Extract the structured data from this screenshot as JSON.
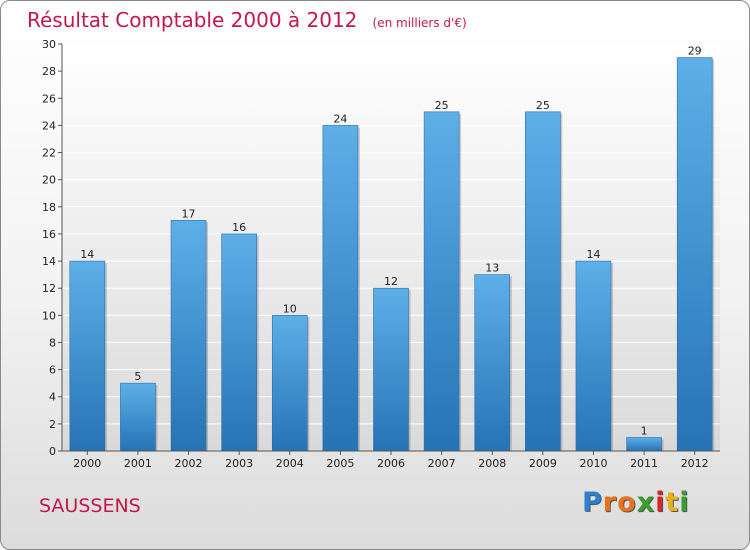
{
  "header": {
    "title": "Résultat Comptable 2000 à 2012",
    "unit": "(en milliers d'€)"
  },
  "footer": {
    "commune": "SAUSSENS",
    "brand_letters": [
      "P",
      "r",
      "o",
      "x",
      "i",
      "t",
      "i"
    ],
    "brand_colors": [
      "#2e7fd0",
      "#e8731c",
      "#e8731c",
      "#3a9e2e",
      "#d6272a",
      "#e8b21c",
      "#3a9e2e"
    ]
  },
  "chart_data": {
    "type": "bar",
    "title": "Résultat Comptable 2000 à 2012",
    "xlabel": "",
    "ylabel": "",
    "categories": [
      "2000",
      "2001",
      "2002",
      "2003",
      "2004",
      "2005",
      "2006",
      "2007",
      "2008",
      "2009",
      "2010",
      "2011",
      "2012"
    ],
    "values": [
      14,
      5,
      17,
      16,
      10,
      24,
      12,
      25,
      13,
      25,
      14,
      1,
      29
    ],
    "ylim": [
      0,
      30
    ],
    "yticks": [
      0,
      2,
      4,
      6,
      8,
      10,
      12,
      14,
      16,
      18,
      20,
      22,
      24,
      26,
      28,
      30
    ],
    "grid": true,
    "bar_color": "#3b8fd6"
  }
}
